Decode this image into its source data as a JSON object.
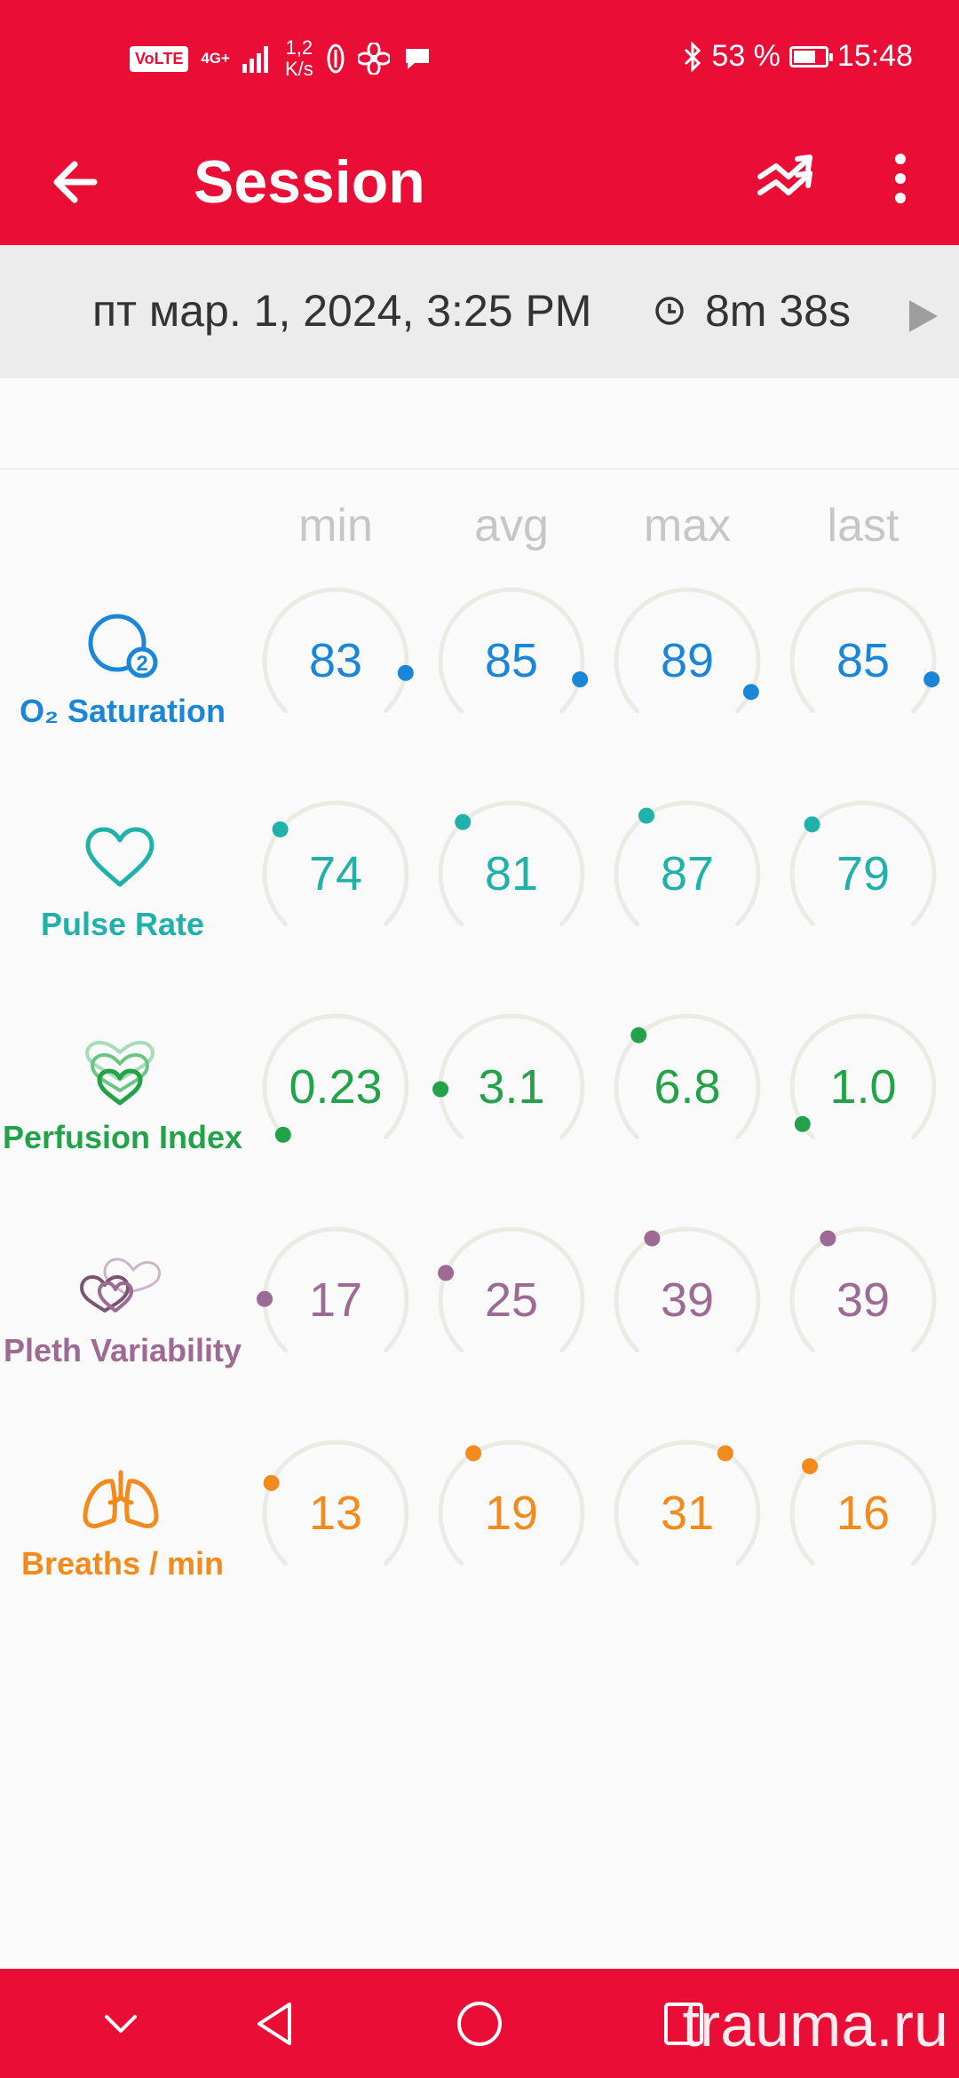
{
  "status_bar": {
    "volte": "VoLTE",
    "network": "4G+",
    "net_speed_value": "1,2",
    "net_speed_unit": "K/s",
    "battery_percent": "53 %",
    "time": "15:48"
  },
  "app_bar": {
    "title": "Session"
  },
  "session": {
    "date": "пт мар. 1, 2024, 3:25 PM",
    "duration": "8m 38s"
  },
  "columns": [
    "min",
    "avg",
    "max",
    "last"
  ],
  "metrics": [
    {
      "label": "O₂ Saturation",
      "icon": "o2-saturation-icon",
      "color": "#1a86d9",
      "values": [
        "83",
        "85",
        "89",
        "85"
      ],
      "levels": [
        0.87,
        0.89,
        0.93,
        0.89
      ]
    },
    {
      "label": "Pulse Rate",
      "icon": "heart-icon",
      "color": "#1fb1aa",
      "values": [
        "74",
        "81",
        "87",
        "79"
      ],
      "levels": [
        0.31,
        0.34,
        0.37,
        0.33
      ]
    },
    {
      "label": "Perfusion Index",
      "icon": "layered-hearts-icon",
      "color": "#22a34a",
      "values": [
        "0.23",
        "3.1",
        "6.8",
        "1.0"
      ],
      "levels": [
        0.01,
        0.16,
        0.34,
        0.05
      ]
    },
    {
      "label": "Pleth Variability",
      "icon": "pleth-hearts-icon",
      "color": "#9c6a93",
      "values": [
        "17",
        "25",
        "39",
        "39"
      ],
      "levels": [
        0.17,
        0.25,
        0.39,
        0.39
      ]
    },
    {
      "label": "Breaths / min",
      "icon": "lungs-icon",
      "color": "#f28b1c",
      "values": [
        "13",
        "19",
        "31",
        "16"
      ],
      "levels": [
        0.26,
        0.38,
        0.62,
        0.32
      ]
    }
  ],
  "watermark": "trauma.ru"
}
